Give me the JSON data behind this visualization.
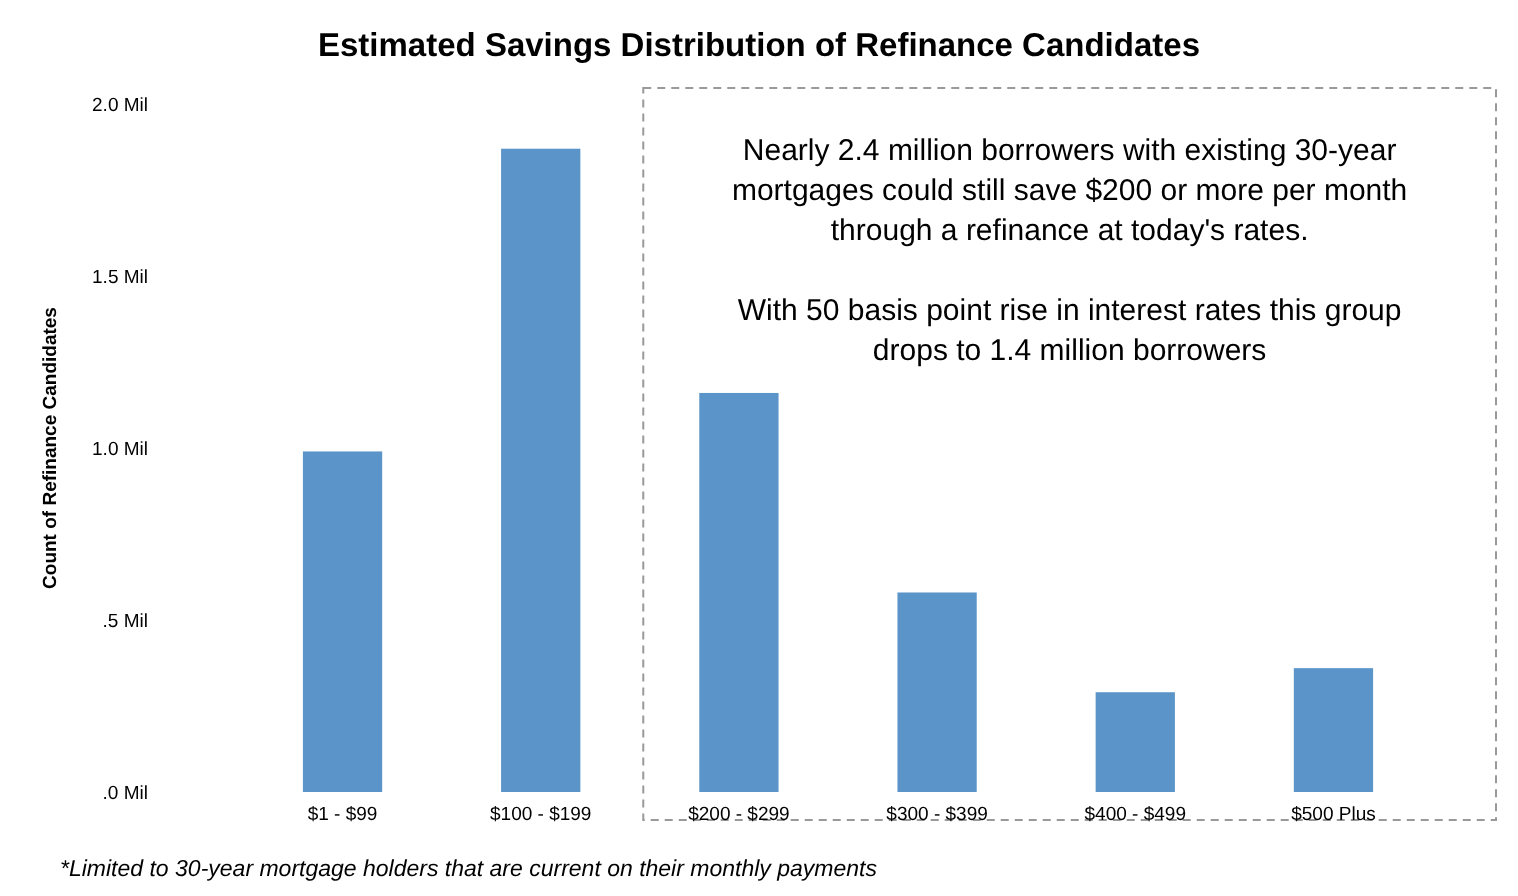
{
  "chart_data": {
    "type": "bar",
    "title": "Estimated Savings Distribution of Refinance Candidates",
    "ylabel": "Count of Refinance Candidates",
    "categories": [
      "$1 - $99",
      "$100 - $199",
      "$200 - $299",
      "$300 - $399",
      "$400 - $499",
      "$500 Plus"
    ],
    "values": [
      0.99,
      1.87,
      1.16,
      0.58,
      0.29,
      0.36
    ],
    "color": "#5b94c9",
    "ylim": [
      0,
      2
    ],
    "yticks": [
      {
        "value": 0,
        "label": ".0 Mil"
      },
      {
        "value": 0.5,
        "label": ".5 Mil"
      },
      {
        "value": 1,
        "label": "1.0 Mil"
      },
      {
        "value": 1.5,
        "label": "1.5 Mil"
      },
      {
        "value": 2,
        "label": "2.0 Mil"
      }
    ],
    "grid": false,
    "annotations": [
      "Nearly 2.4 million borrowers with existing 30-year mortgages could still save $200 or more per month through a refinance at today's rates.",
      "With 50 basis point rise in interest rates this group drops to 1.4 million borrowers",
      "*Limited to 30-year mortgage holders that are current on their monthly payments"
    ]
  }
}
